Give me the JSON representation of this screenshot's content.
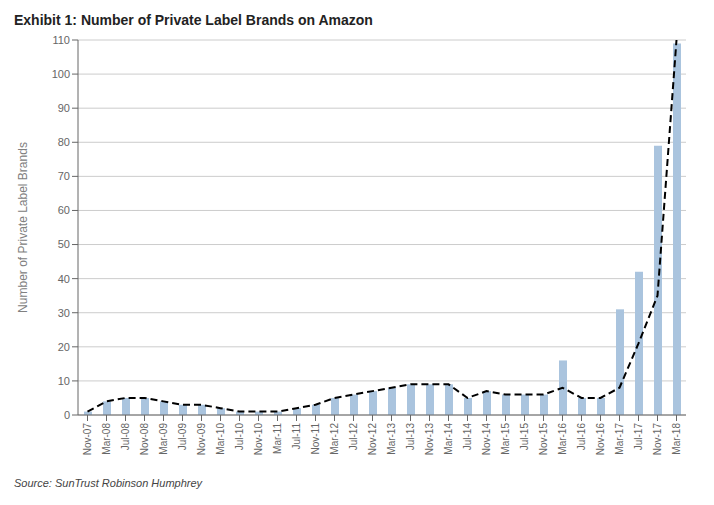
{
  "chart_data": {
    "type": "bar",
    "title": "Exhibit 1: Number of Private Label Brands on Amazon",
    "y_label": "Number of Private Label Brands",
    "annotations": [
      "Source: SunTrust Robinson Humphrey"
    ],
    "categories": [
      "Nov-07",
      "Mar-08",
      "Jul-08",
      "Nov-08",
      "Mar-09",
      "Jul-09",
      "Nov-09",
      "Mar-10",
      "Jul-10",
      "Nov-10",
      "Mar-11",
      "Jul-11",
      "Nov-11",
      "Mar-12",
      "Jul-12",
      "Nov-12",
      "Mar-13",
      "Jul-13",
      "Nov-13",
      "Mar-14",
      "Jul-14",
      "Nov-14",
      "Mar-15",
      "Jul-15",
      "Nov-15",
      "Mar-16",
      "Jul-16",
      "Nov-16",
      "Mar-17",
      "Jul-17",
      "Nov-17",
      "Mar-18"
    ],
    "series": [
      {
        "type": "bar",
        "color": "#aac4de",
        "values": [
          1,
          4,
          5,
          5,
          4,
          3,
          3,
          2,
          1,
          1,
          1,
          2,
          3,
          5,
          6,
          7,
          8,
          9,
          9,
          9,
          5,
          7,
          6,
          6,
          6,
          16,
          5,
          5,
          31,
          42,
          79,
          109
        ]
      },
      {
        "type": "line",
        "color": "#000000",
        "line_style": "dashed",
        "values": [
          1,
          4,
          5,
          5,
          4,
          3,
          3,
          2,
          1,
          1,
          1,
          2,
          3,
          5,
          6,
          7,
          8,
          9,
          9,
          9,
          5,
          7,
          6,
          6,
          6,
          8,
          5,
          5,
          8,
          21,
          35,
          110
        ]
      }
    ],
    "ylim": [
      0,
      110
    ],
    "yticks": [
      0,
      10,
      20,
      30,
      40,
      50,
      60,
      70,
      80,
      90,
      100,
      110
    ],
    "grid": true
  }
}
